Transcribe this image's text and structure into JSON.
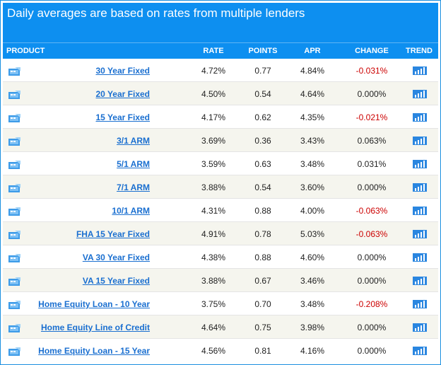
{
  "header": {
    "title": "Daily averages are based on rates from multiple lenders"
  },
  "columns": {
    "product": "PRODUCT",
    "rate": "RATE",
    "points": "POINTS",
    "apr": "APR",
    "change": "CHANGE",
    "trend": "TREND"
  },
  "colors": {
    "header_bg": "#0d8ff0",
    "link": "#1a6fd0",
    "negative_change": "#cc0000",
    "alt_row_bg": "#f5f5ee"
  },
  "icons": {
    "row_icon": "calculator-icon",
    "trend_icon": "bar-chart-icon"
  },
  "rows": [
    {
      "product": "30 Year Fixed",
      "rate": "4.72%",
      "points": "0.77",
      "apr": "4.84%",
      "change": "-0.031%",
      "negative": true
    },
    {
      "product": "20 Year Fixed",
      "rate": "4.50%",
      "points": "0.54",
      "apr": "4.64%",
      "change": "0.000%",
      "negative": false
    },
    {
      "product": "15 Year Fixed",
      "rate": "4.17%",
      "points": "0.62",
      "apr": "4.35%",
      "change": "-0.021%",
      "negative": true
    },
    {
      "product": "3/1 ARM",
      "rate": "3.69%",
      "points": "0.36",
      "apr": "3.43%",
      "change": "0.063%",
      "negative": false
    },
    {
      "product": "5/1 ARM",
      "rate": "3.59%",
      "points": "0.63",
      "apr": "3.48%",
      "change": "0.031%",
      "negative": false
    },
    {
      "product": "7/1 ARM",
      "rate": "3.88%",
      "points": "0.54",
      "apr": "3.60%",
      "change": "0.000%",
      "negative": false
    },
    {
      "product": "10/1 ARM",
      "rate": "4.31%",
      "points": "0.88",
      "apr": "4.00%",
      "change": "-0.063%",
      "negative": true
    },
    {
      "product": "FHA 15 Year Fixed",
      "rate": "4.91%",
      "points": "0.78",
      "apr": "5.03%",
      "change": "-0.063%",
      "negative": true
    },
    {
      "product": "VA 30 Year Fixed",
      "rate": "4.38%",
      "points": "0.88",
      "apr": "4.60%",
      "change": "0.000%",
      "negative": false
    },
    {
      "product": "VA 15 Year Fixed",
      "rate": "3.88%",
      "points": "0.67",
      "apr": "3.46%",
      "change": "0.000%",
      "negative": false
    },
    {
      "product": "Home Equity Loan - 10 Year",
      "rate": "3.75%",
      "points": "0.70",
      "apr": "3.48%",
      "change": "-0.208%",
      "negative": true
    },
    {
      "product": "Home Equity Line of Credit",
      "rate": "4.64%",
      "points": "0.75",
      "apr": "3.98%",
      "change": "0.000%",
      "negative": false
    },
    {
      "product": "Home Equity Loan - 15 Year",
      "rate": "4.56%",
      "points": "0.81",
      "apr": "4.16%",
      "change": "0.000%",
      "negative": false
    }
  ]
}
